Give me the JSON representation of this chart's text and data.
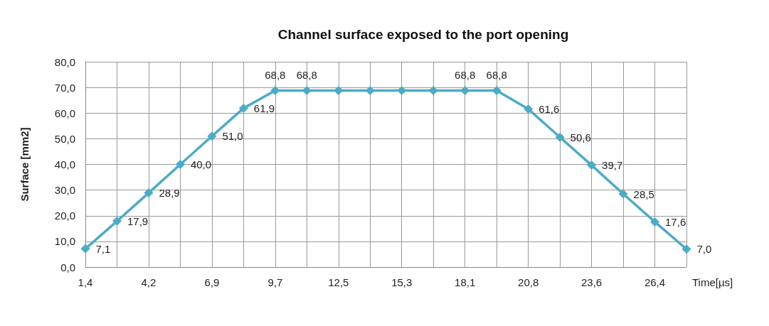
{
  "chart_data": {
    "type": "line",
    "title": "Channel surface exposed to the port opening",
    "xlabel": "Time[µs]",
    "ylabel": "Surface [mm2]",
    "categories": [
      "1,4",
      null,
      "4,2",
      null,
      "6,9",
      null,
      "9,7",
      null,
      "12,5",
      null,
      "15,3",
      null,
      "18,1",
      null,
      "20,8",
      null,
      "23,6",
      null,
      "26,4",
      null
    ],
    "series": [
      {
        "color": "#4bacc6",
        "values": [
          7.1,
          17.9,
          28.9,
          40.0,
          51.0,
          61.9,
          68.8,
          68.8,
          68.8,
          68.8,
          68.8,
          68.8,
          68.8,
          68.8,
          61.6,
          50.6,
          39.7,
          28.5,
          17.6,
          7.0
        ],
        "value_labels": [
          "7,1",
          "17,9",
          "28,9",
          "40,0",
          "51,0",
          "61,9",
          "68,8",
          "68,8",
          null,
          null,
          null,
          null,
          "68,8",
          "68,8",
          "61,6",
          "50,6",
          "39,7",
          "28,5",
          "17,6",
          "7,0"
        ]
      }
    ],
    "ylim": [
      0,
      80
    ],
    "yticks": [
      {
        "value": 0,
        "label": "0,0"
      },
      {
        "value": 10,
        "label": "10,0"
      },
      {
        "value": 20,
        "label": "20,0"
      },
      {
        "value": 30,
        "label": "30,0"
      },
      {
        "value": 40,
        "label": "40,0"
      },
      {
        "value": 50,
        "label": "50,0"
      },
      {
        "value": 60,
        "label": "60,0"
      },
      {
        "value": 70,
        "label": "70,0"
      },
      {
        "value": 80,
        "label": "80,0"
      }
    ],
    "grid": true,
    "marker": "diamond",
    "line_style": "solid"
  }
}
